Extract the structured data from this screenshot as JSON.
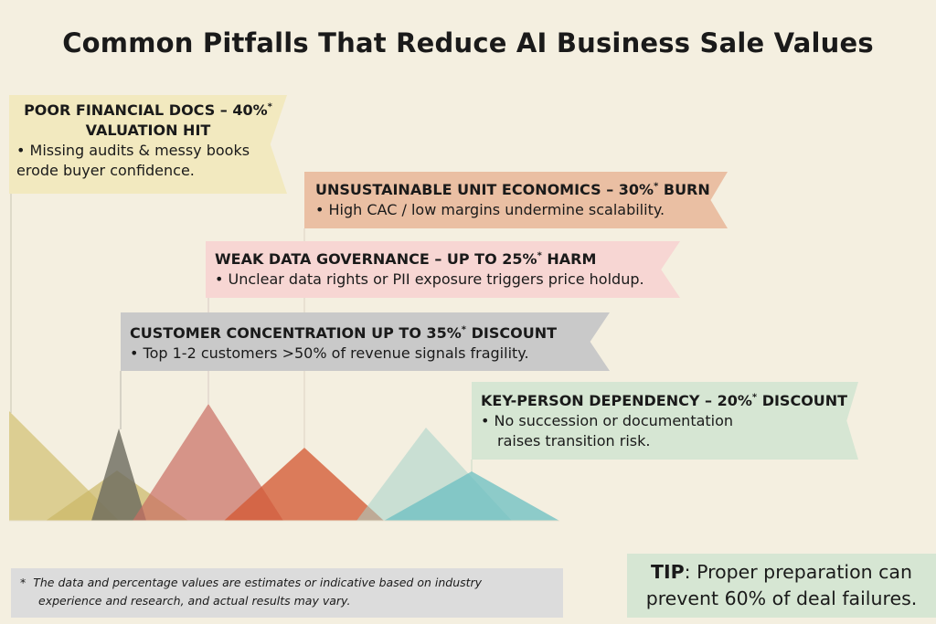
{
  "title": "Common Pitfalls That Reduce AI Business Sale Values",
  "pitfalls": [
    {
      "head": "POOR FINANCIAL DOCS – 40%",
      "head_star": "*",
      "head_line2": "VALUATION HIT",
      "bullet_line1": "• Missing audits & messy books",
      "bullet_line2": "erode buyer confidence.",
      "color": "#f2e9bf"
    },
    {
      "head": "UNSUSTAINABLE UNIT ECONOMICS – 30%",
      "head_star": "*",
      "head_tail": " BURN",
      "bullet": "• High CAC / low margins undermine scalability.",
      "color": "#eabfa3"
    },
    {
      "head": "WEAK DATA GOVERNANCE – UP TO 25%",
      "head_star": "*",
      "head_tail": " HARM",
      "bullet": "• Unclear data rights or PII exposure triggers price holdup.",
      "color": "#f7d6d3"
    },
    {
      "head": "CUSTOMER CONCENTRATION UP TO 35%",
      "head_star": "*",
      "head_tail": " DISCOUNT",
      "bullet": "• Top 1-2 customers >50% of revenue signals fragility.",
      "color": "#c9c9c9"
    },
    {
      "head": "KEY-PERSON DEPENDENCY – 20%",
      "head_star": "*",
      "head_tail": " DISCOUNT",
      "bullet_line1": "• No succession or documentation",
      "bullet_line2": "raises transition risk.",
      "color": "#d6e6d3"
    }
  ],
  "footnote": {
    "star": "*",
    "line1": "The data and percentage values are estimates or indicative based on industry",
    "line2": "experience and research, and actual results may vary."
  },
  "tip": {
    "label": "TIP",
    "line1_rest": ": Proper preparation can",
    "line2": "prevent 60% of deal failures."
  }
}
